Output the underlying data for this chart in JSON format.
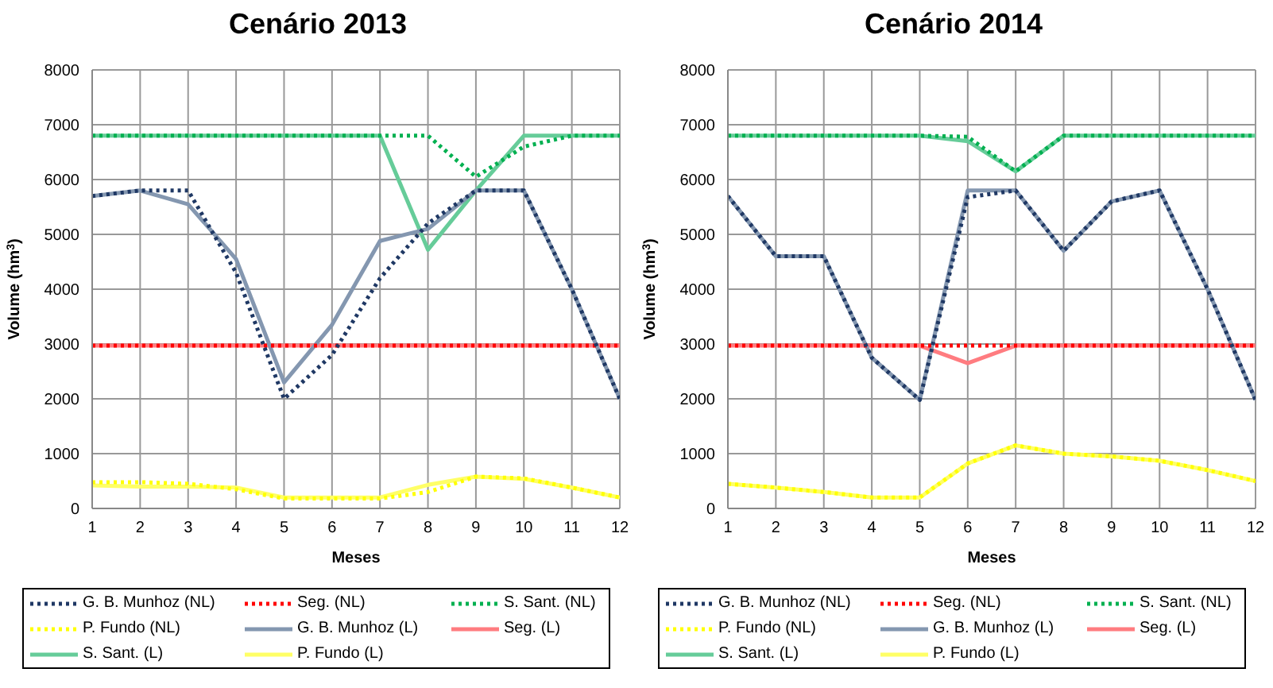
{
  "chart_data": [
    {
      "type": "line",
      "title": "Cenário 2013",
      "xlabel": "Meses",
      "ylabel": "Volume (hm$^{3}$)",
      "x": [
        1,
        2,
        3,
        4,
        5,
        6,
        7,
        8,
        9,
        10,
        11,
        12
      ],
      "xlim": [
        1,
        12
      ],
      "xticks": [
        1,
        2,
        3,
        4,
        5,
        6,
        7,
        8,
        9,
        10,
        11,
        12
      ],
      "ylim": [
        0,
        8000
      ],
      "yticks": [
        0,
        1000,
        2000,
        3000,
        4000,
        5000,
        6000,
        7000,
        8000
      ],
      "grid": true,
      "legend": "bottom",
      "marker": "none",
      "series": [
        {
          "name": "G. B. Munhoz (NL)",
          "color": "#1f3864",
          "line_style": "dotted",
          "values": [
            5700,
            5800,
            5800,
            4300,
            2000,
            2800,
            4200,
            5200,
            5800,
            5800,
            4000,
            2000
          ]
        },
        {
          "name": "Seg. (NL)",
          "color": "#ff0000",
          "line_style": "dotted",
          "values": [
            2970,
            2970,
            2970,
            2970,
            2970,
            2970,
            2970,
            2970,
            2970,
            2970,
            2970,
            2970
          ]
        },
        {
          "name": "S. Sant. (NL)",
          "color": "#00b050",
          "line_style": "dotted",
          "values": [
            6800,
            6800,
            6800,
            6800,
            6800,
            6800,
            6800,
            6800,
            6050,
            6600,
            6800,
            6800
          ]
        },
        {
          "name": "P. Fundo (NL)",
          "color": "#ffff00",
          "line_style": "dotted",
          "values": [
            480,
            480,
            450,
            350,
            180,
            180,
            180,
            300,
            580,
            550,
            380,
            200
          ]
        },
        {
          "name": "G. B. Munhoz (L)",
          "color": "#8497b0",
          "line_style": "solid",
          "values": [
            5700,
            5800,
            5550,
            4550,
            2300,
            3350,
            4880,
            5100,
            5800,
            5800,
            4000,
            2000
          ]
        },
        {
          "name": "Seg. (L)",
          "color": "#ff7c80",
          "line_style": "solid",
          "values": [
            2970,
            2970,
            2970,
            2970,
            2970,
            2970,
            2970,
            2970,
            2970,
            2970,
            2970,
            2970
          ]
        },
        {
          "name": "S. Sant. (L)",
          "color": "#66cc99",
          "line_style": "solid",
          "values": [
            6800,
            6800,
            6800,
            6800,
            6800,
            6800,
            6800,
            4720,
            5800,
            6800,
            6800,
            6800
          ]
        },
        {
          "name": "P. Fundo (L)",
          "color": "#ffff66",
          "line_style": "solid",
          "values": [
            420,
            400,
            400,
            380,
            200,
            200,
            200,
            430,
            580,
            540,
            380,
            200
          ]
        }
      ]
    },
    {
      "type": "line",
      "title": "Cenário 2014",
      "xlabel": "Meses",
      "ylabel": "Volume (hm$^{3}$)",
      "x": [
        1,
        2,
        3,
        4,
        5,
        6,
        7,
        8,
        9,
        10,
        11,
        12
      ],
      "xlim": [
        1,
        12
      ],
      "xticks": [
        1,
        2,
        3,
        4,
        5,
        6,
        7,
        8,
        9,
        10,
        11,
        12
      ],
      "ylim": [
        0,
        8000
      ],
      "yticks": [
        0,
        1000,
        2000,
        3000,
        4000,
        5000,
        6000,
        7000,
        8000
      ],
      "grid": true,
      "legend": "bottom",
      "marker": "none",
      "series": [
        {
          "name": "G. B. Munhoz (NL)",
          "color": "#1f3864",
          "line_style": "dotted",
          "values": [
            5700,
            4600,
            4600,
            2750,
            1980,
            5680,
            5800,
            4700,
            5600,
            5800,
            4000,
            1980
          ]
        },
        {
          "name": "Seg. (NL)",
          "color": "#ff0000",
          "line_style": "dotted",
          "values": [
            2970,
            2970,
            2970,
            2970,
            2970,
            2970,
            2970,
            2970,
            2970,
            2970,
            2970,
            2970
          ]
        },
        {
          "name": "S. Sant. (NL)",
          "color": "#00b050",
          "line_style": "dotted",
          "values": [
            6800,
            6800,
            6800,
            6800,
            6800,
            6780,
            6150,
            6800,
            6800,
            6800,
            6800,
            6800
          ]
        },
        {
          "name": "P. Fundo (NL)",
          "color": "#ffff00",
          "line_style": "dotted",
          "values": [
            450,
            380,
            300,
            200,
            200,
            820,
            1150,
            1000,
            950,
            870,
            700,
            500
          ]
        },
        {
          "name": "G. B. Munhoz (L)",
          "color": "#8497b0",
          "line_style": "solid",
          "values": [
            5700,
            4600,
            4600,
            2750,
            1980,
            5800,
            5800,
            4700,
            5600,
            5800,
            4000,
            1980
          ]
        },
        {
          "name": "Seg. (L)",
          "color": "#ff7c80",
          "line_style": "solid",
          "values": [
            2970,
            2970,
            2970,
            2970,
            2970,
            2650,
            2970,
            2970,
            2970,
            2970,
            2970,
            2970
          ]
        },
        {
          "name": "S. Sant. (L)",
          "color": "#66cc99",
          "line_style": "solid",
          "values": [
            6800,
            6800,
            6800,
            6800,
            6800,
            6700,
            6150,
            6800,
            6800,
            6800,
            6800,
            6800
          ]
        },
        {
          "name": "P. Fundo (L)",
          "color": "#ffff66",
          "line_style": "solid",
          "values": [
            450,
            380,
            300,
            200,
            200,
            820,
            1150,
            1000,
            950,
            870,
            700,
            500
          ]
        }
      ]
    }
  ]
}
